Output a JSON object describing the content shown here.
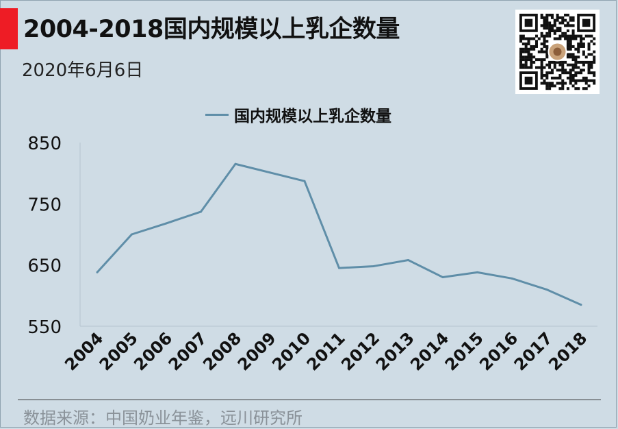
{
  "header": {
    "title": "2004-2018国内规模以上乳企数量",
    "date": "2020年6月6日"
  },
  "source": "数据来源：中国奶业年鉴，远川研究所",
  "colors": {
    "background": "#cfdce5",
    "accent": "#ee1c25",
    "line": "#5f8ea8"
  },
  "icons": {
    "qr": "qr-code"
  },
  "chart_data": {
    "type": "line",
    "categories": [
      "2004",
      "2005",
      "2006",
      "2007",
      "2008",
      "2009",
      "2010",
      "2011",
      "2012",
      "2013",
      "2014",
      "2015",
      "2016",
      "2017",
      "2018"
    ],
    "series": [
      {
        "name": "国内规模以上乳企数量",
        "values": [
          638,
          700,
          718,
          737,
          815,
          801,
          787,
          645,
          648,
          658,
          630,
          638,
          628,
          610,
          585
        ]
      }
    ],
    "ylim": [
      550,
      850
    ],
    "yticks": [
      "850",
      "750",
      "650",
      "550"
    ],
    "legend": "top-center",
    "grid": false
  }
}
